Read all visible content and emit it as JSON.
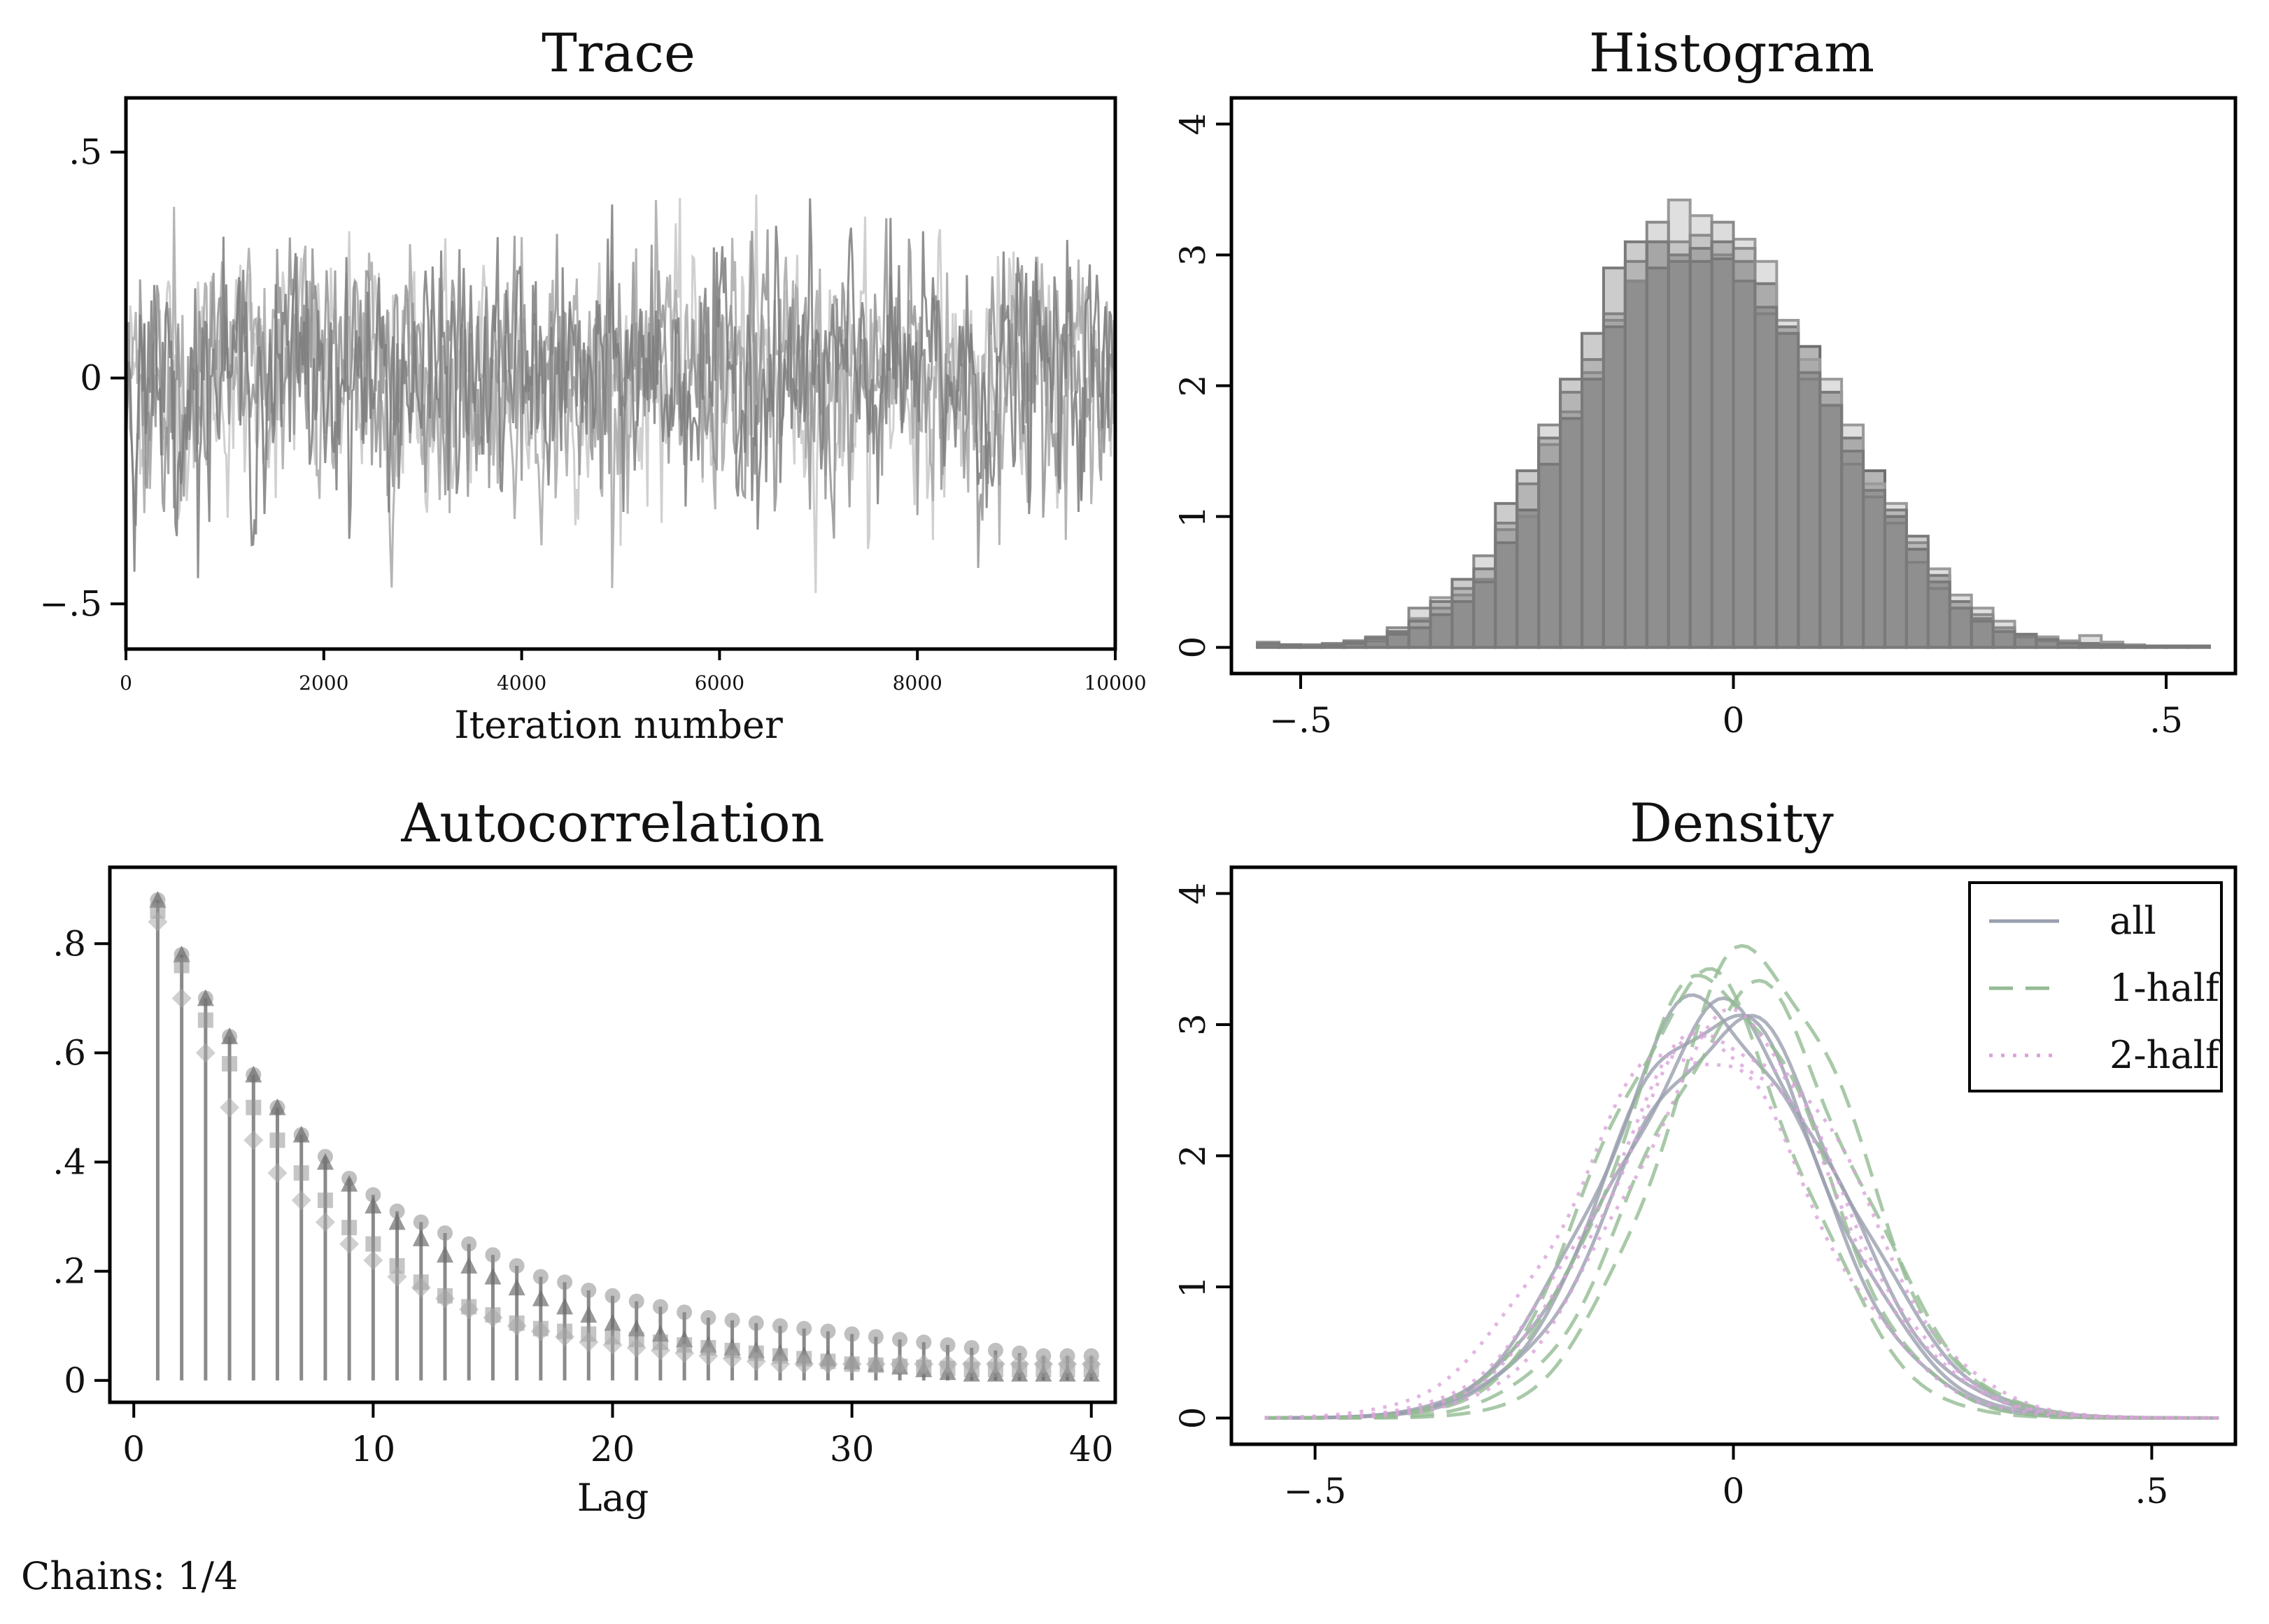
{
  "footer": "Chains: 1/4",
  "chart_data": [
    {
      "type": "line",
      "title": "Trace",
      "xlabel": "Iteration number",
      "ylabel": "",
      "xlim": [
        0,
        10000
      ],
      "ylim": [
        -0.6,
        0.62
      ],
      "xticks": [
        "0",
        "2000",
        "4000",
        "6000",
        "8000",
        "10000"
      ],
      "xtick_values": [
        0,
        2000,
        4000,
        6000,
        8000,
        10000
      ],
      "yticks": [
        "-.5",
        "0",
        ".5"
      ],
      "ytick_values": [
        -0.5,
        0,
        0.5
      ],
      "series_count": 4,
      "mean": 0.0,
      "spread_sd": 0.13,
      "color": "#808080"
    },
    {
      "type": "bar",
      "title": "Histogram",
      "xlabel": "",
      "ylabel": "",
      "xlim": [
        -0.58,
        0.58
      ],
      "ylim": [
        -0.2,
        4.2
      ],
      "xticks": [
        "-.5",
        "0",
        ".5"
      ],
      "xtick_values": [
        -0.5,
        0,
        0.5
      ],
      "yticks": [
        "0",
        "1",
        "2",
        "3",
        "4"
      ],
      "ytick_values": [
        0,
        1,
        2,
        3,
        4
      ],
      "bin_width": 0.025,
      "bin_centers": [
        -0.5375,
        -0.5125,
        -0.4875,
        -0.4625,
        -0.4375,
        -0.4125,
        -0.3875,
        -0.3625,
        -0.3375,
        -0.3125,
        -0.2875,
        -0.2625,
        -0.2375,
        -0.2125,
        -0.1875,
        -0.1625,
        -0.1375,
        -0.1125,
        -0.0875,
        -0.0625,
        -0.0375,
        -0.0125,
        0.0125,
        0.0375,
        0.0625,
        0.0875,
        0.1125,
        0.1375,
        0.1625,
        0.1875,
        0.2125,
        0.2375,
        0.2625,
        0.2875,
        0.3125,
        0.3375,
        0.3625,
        0.3875,
        0.4125,
        0.4375,
        0.4625,
        0.4875,
        0.5125,
        0.5375
      ],
      "series": [
        {
          "name": "",
          "values": [
            0.03,
            0.01,
            0.01,
            0.02,
            0.03,
            0.05,
            0.1,
            0.15,
            0.25,
            0.35,
            0.5,
            0.8,
            1.05,
            1.4,
            1.75,
            2.05,
            2.45,
            2.8,
            2.9,
            3.0,
            2.95,
            2.97,
            2.95,
            2.78,
            2.45,
            2.3,
            1.95,
            1.6,
            1.35,
            1.0,
            0.75,
            0.55,
            0.35,
            0.22,
            0.15,
            0.08,
            0.05,
            0.04,
            0.03,
            0.02,
            0.01,
            0.01,
            0.01,
            0.01
          ]
        },
        {
          "name": "",
          "values": [
            0.04,
            0.02,
            0.01,
            0.02,
            0.04,
            0.06,
            0.12,
            0.22,
            0.38,
            0.4,
            0.52,
            0.9,
            1.0,
            1.55,
            1.8,
            2.1,
            2.5,
            2.8,
            3.1,
            3.42,
            3.3,
            3.0,
            3.12,
            2.95,
            2.5,
            2.2,
            2.05,
            1.7,
            1.25,
            1.1,
            0.8,
            0.6,
            0.4,
            0.3,
            0.2,
            0.1,
            0.08,
            0.05,
            0.09,
            0.04,
            0.02,
            0.01,
            0.01,
            0.01
          ]
        },
        {
          "name": "",
          "values": [
            0.02,
            0.01,
            0.02,
            0.03,
            0.05,
            0.08,
            0.15,
            0.3,
            0.3,
            0.45,
            0.7,
            0.95,
            1.25,
            1.7,
            1.95,
            2.2,
            2.55,
            2.95,
            3.25,
            3.1,
            3.15,
            3.25,
            3.05,
            2.55,
            2.4,
            2.05,
            1.85,
            1.4,
            1.15,
            0.95,
            0.65,
            0.45,
            0.3,
            0.25,
            0.15,
            0.08,
            0.05,
            0.04,
            0.02,
            0.02,
            0.01,
            0.01,
            0.01,
            0.01
          ]
        },
        {
          "name": "",
          "values": [
            0.03,
            0.02,
            0.01,
            0.02,
            0.04,
            0.07,
            0.12,
            0.2,
            0.35,
            0.52,
            0.6,
            1.1,
            1.35,
            1.6,
            2.05,
            2.4,
            2.9,
            3.1,
            3.1,
            2.95,
            3.05,
            3.1,
            2.8,
            2.6,
            2.4,
            2.1,
            1.85,
            1.5,
            1.2,
            1.05,
            0.85,
            0.5,
            0.3,
            0.2,
            0.12,
            0.1,
            0.06,
            0.03,
            0.02,
            0.02,
            0.01,
            0.01,
            0.01,
            0.01
          ]
        }
      ],
      "color": "#808080"
    },
    {
      "type": "scatter",
      "title": "Autocorrelation",
      "xlabel": "Lag",
      "ylabel": "",
      "xlim": [
        -1,
        41
      ],
      "ylim": [
        -0.04,
        0.94
      ],
      "xticks": [
        "0",
        "10",
        "20",
        "30",
        "40"
      ],
      "xtick_values": [
        0,
        10,
        20,
        30,
        40
      ],
      "yticks": [
        "0",
        ".2",
        ".4",
        ".6",
        ".8"
      ],
      "ytick_values": [
        0,
        0.2,
        0.4,
        0.6,
        0.8
      ],
      "lags": [
        1,
        2,
        3,
        4,
        5,
        6,
        7,
        8,
        9,
        10,
        11,
        12,
        13,
        14,
        15,
        16,
        17,
        18,
        19,
        20,
        21,
        22,
        23,
        24,
        25,
        26,
        27,
        28,
        29,
        30,
        31,
        32,
        33,
        34,
        35,
        36,
        37,
        38,
        39,
        40
      ],
      "series": [
        {
          "name": "",
          "marker": "circle",
          "values": [
            0.88,
            0.78,
            0.7,
            0.63,
            0.56,
            0.5,
            0.45,
            0.41,
            0.37,
            0.34,
            0.31,
            0.29,
            0.27,
            0.25,
            0.23,
            0.21,
            0.19,
            0.18,
            0.165,
            0.155,
            0.145,
            0.135,
            0.125,
            0.115,
            0.11,
            0.105,
            0.1,
            0.095,
            0.09,
            0.085,
            0.08,
            0.075,
            0.07,
            0.065,
            0.06,
            0.055,
            0.05,
            0.045,
            0.045,
            0.045
          ]
        },
        {
          "name": "",
          "marker": "triangle",
          "values": [
            0.88,
            0.78,
            0.7,
            0.63,
            0.56,
            0.5,
            0.45,
            0.4,
            0.36,
            0.32,
            0.29,
            0.26,
            0.23,
            0.21,
            0.19,
            0.17,
            0.15,
            0.135,
            0.12,
            0.105,
            0.095,
            0.085,
            0.075,
            0.065,
            0.06,
            0.055,
            0.05,
            0.045,
            0.04,
            0.035,
            0.03,
            0.025,
            0.02,
            0.015,
            0.012,
            0.012,
            0.012,
            0.012,
            0.012,
            0.012
          ]
        },
        {
          "name": "",
          "marker": "square",
          "values": [
            0.86,
            0.76,
            0.66,
            0.58,
            0.5,
            0.44,
            0.38,
            0.33,
            0.28,
            0.25,
            0.21,
            0.18,
            0.155,
            0.135,
            0.12,
            0.105,
            0.095,
            0.09,
            0.085,
            0.08,
            0.075,
            0.07,
            0.065,
            0.06,
            0.055,
            0.05,
            0.045,
            0.04,
            0.035,
            0.03,
            0.028,
            0.026,
            0.024,
            0.022,
            0.02,
            0.02,
            0.02,
            0.02,
            0.02,
            0.02
          ]
        },
        {
          "name": "",
          "marker": "diamond",
          "values": [
            0.84,
            0.7,
            0.6,
            0.5,
            0.44,
            0.38,
            0.33,
            0.29,
            0.25,
            0.22,
            0.19,
            0.17,
            0.15,
            0.13,
            0.115,
            0.1,
            0.09,
            0.08,
            0.07,
            0.065,
            0.06,
            0.055,
            0.05,
            0.045,
            0.04,
            0.035,
            0.03,
            0.03,
            0.03,
            0.03,
            0.03,
            0.03,
            0.03,
            0.03,
            0.03,
            0.03,
            0.03,
            0.03,
            0.03,
            0.03
          ]
        }
      ],
      "color": "#808080"
    },
    {
      "type": "line",
      "title": "Density",
      "xlabel": "",
      "ylabel": "",
      "xlim": [
        -0.6,
        0.6
      ],
      "ylim": [
        -0.2,
        4.2
      ],
      "xticks": [
        "-.5",
        "0",
        ".5"
      ],
      "xtick_values": [
        -0.5,
        0,
        0.5
      ],
      "yticks": [
        "0",
        "1",
        "2",
        "3",
        "4"
      ],
      "ytick_values": [
        0,
        1,
        2,
        3,
        4
      ],
      "x_range": [
        -0.56,
        0.58
      ],
      "legend": {
        "placement": "top-right",
        "entries": [
          {
            "label": "all",
            "color": "#9a9fae",
            "dash": "solid"
          },
          {
            "label": "1-half",
            "color": "#94bb94",
            "dash": "dash"
          },
          {
            "label": "2-half",
            "color": "#d9a3d9",
            "dash": "dot"
          }
        ]
      },
      "series": [
        {
          "name": "all",
          "peak": 3.1,
          "center": -0.02,
          "sd": 0.128
        },
        {
          "name": "all",
          "peak": 3.05,
          "center": -0.01,
          "sd": 0.13
        },
        {
          "name": "all",
          "peak": 3.15,
          "center": -0.03,
          "sd": 0.126
        },
        {
          "name": "all",
          "peak": 3.0,
          "center": 0.0,
          "sd": 0.132
        },
        {
          "name": "1-half",
          "peak": 3.55,
          "center": 0.03,
          "sd": 0.115
        },
        {
          "name": "1-half",
          "peak": 3.35,
          "center": -0.02,
          "sd": 0.12
        },
        {
          "name": "1-half",
          "peak": 3.2,
          "center": 0.02,
          "sd": 0.125
        },
        {
          "name": "1-half",
          "peak": 3.3,
          "center": -0.04,
          "sd": 0.118
        },
        {
          "name": "2-half",
          "peak": 2.95,
          "center": -0.01,
          "sd": 0.134
        },
        {
          "name": "2-half",
          "peak": 2.85,
          "center": -0.05,
          "sd": 0.138
        },
        {
          "name": "2-half",
          "peak": 3.0,
          "center": 0.01,
          "sd": 0.133
        },
        {
          "name": "2-half",
          "peak": 2.9,
          "center": -0.02,
          "sd": 0.136
        }
      ]
    }
  ]
}
